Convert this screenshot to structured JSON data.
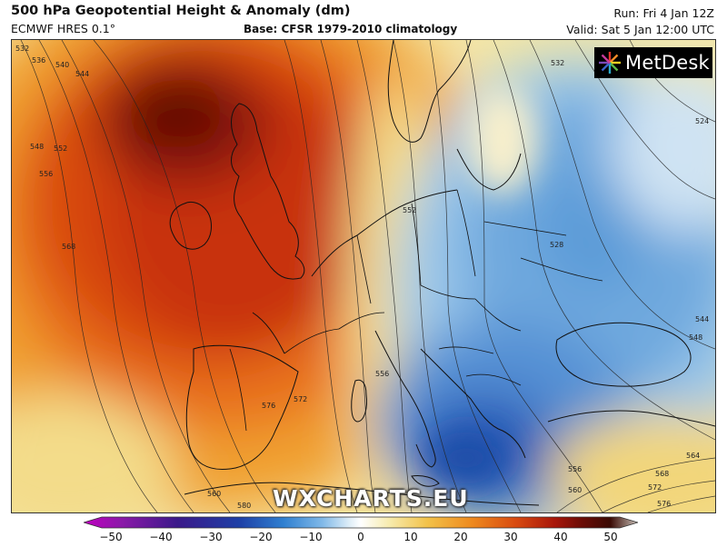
{
  "header": {
    "title": "500 hPa Geopotential Height & Anomaly (dm)",
    "model": "ECMWF HRES 0.1°",
    "base": "Base: CFSR 1979-2010 climatology",
    "run": "Run: Fri 4 Jan 12Z",
    "valid": "Valid: Sat 5 Jan 12:00 UTC"
  },
  "logo": {
    "text": "MetDesk",
    "icon": "metdesk-star-icon"
  },
  "watermark": "WXCHARTS.EU",
  "colorbar": {
    "ticks": [
      "−50",
      "−40",
      "−30",
      "−20",
      "−10",
      "0",
      "10",
      "20",
      "30",
      "40",
      "50"
    ],
    "colors": [
      "#c000c0",
      "#8a1aa8",
      "#3a1a8a",
      "#1e3fa6",
      "#2f7fd0",
      "#7fb8e8",
      "#dfeef8",
      "#ffffff",
      "#f7ecb0",
      "#f2c24a",
      "#ee8a1e",
      "#d84a10",
      "#a8160a",
      "#6a0c06",
      "#3a0a04",
      "#c8c0b8"
    ]
  },
  "contour_labels": [
    "532",
    "536",
    "540",
    "544",
    "548",
    "552",
    "556",
    "568",
    "552",
    "556",
    "572",
    "576",
    "560",
    "580",
    "532",
    "528",
    "524",
    "544",
    "548",
    "568",
    "556",
    "560",
    "564",
    "572",
    "576"
  ]
}
